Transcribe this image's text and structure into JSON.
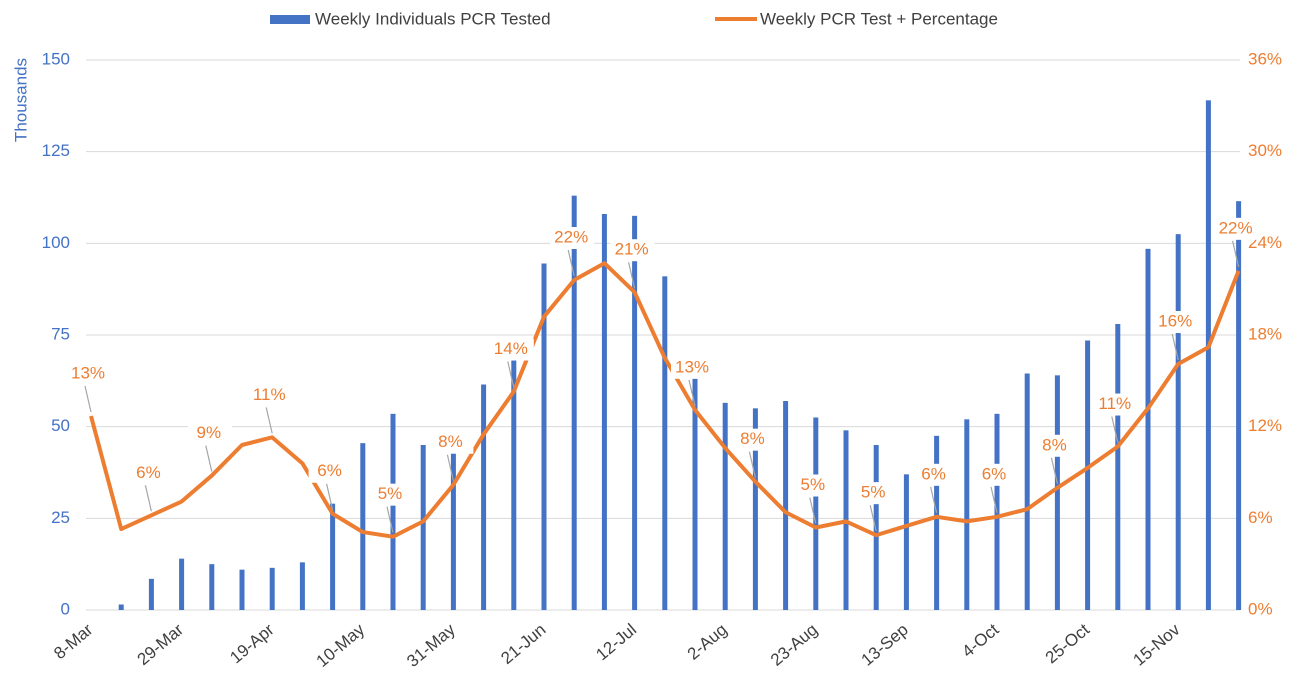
{
  "chart_data": {
    "type": "bar-line",
    "y_label": "Thousands",
    "categories": [
      "8-Mar",
      null,
      null,
      "29-Mar",
      null,
      null,
      "19-Apr",
      null,
      null,
      "10-May",
      null,
      null,
      "31-May",
      null,
      null,
      "21-Jun",
      null,
      null,
      "12-Jul",
      null,
      null,
      "2-Aug",
      null,
      null,
      "23-Aug",
      null,
      null,
      "13-Sep",
      null,
      null,
      "4-Oct",
      null,
      null,
      "25-Oct",
      null,
      null,
      "15-Nov",
      null,
      null
    ],
    "series": [
      {
        "name": "Weekly Individuals PCR Tested",
        "type": "bar",
        "color": "#4472c4",
        "axis": "y",
        "values": [
          0,
          1.5,
          8.5,
          14,
          12.5,
          11,
          11.5,
          13,
          29,
          45.5,
          53.5,
          45,
          47,
          61.5,
          74,
          94.5,
          113,
          108,
          107.5,
          91,
          68,
          56.5,
          55,
          57,
          52.5,
          49,
          45,
          37,
          47.5,
          52,
          53.5,
          64.5,
          64,
          73.5,
          78,
          98.5,
          102.5,
          139,
          111.5
        ]
      },
      {
        "name": "Weekly PCR Test + Percentage",
        "type": "line",
        "color": "#ed7d31",
        "axis": "y2",
        "values": [
          12.7,
          5.3,
          6.2,
          7.1,
          8.8,
          10.8,
          11.3,
          9.6,
          6.3,
          5.1,
          4.8,
          5.8,
          8.2,
          11.5,
          14.3,
          19.2,
          21.6,
          22.7,
          20.8,
          16.5,
          13.1,
          10.6,
          8.4,
          6.4,
          5.4,
          5.8,
          4.9,
          5.5,
          6.1,
          5.8,
          6.1,
          6.6,
          8.0,
          9.3,
          10.7,
          13.2,
          16.1,
          17.2,
          22.2
        ],
        "value_labels": [
          "13%",
          null,
          "6%",
          null,
          "9%",
          null,
          "11%",
          null,
          "6%",
          null,
          "5%",
          null,
          "8%",
          null,
          "14%",
          null,
          "22%",
          null,
          "21%",
          null,
          "13%",
          null,
          "8%",
          null,
          "5%",
          null,
          "5%",
          null,
          "6%",
          null,
          "6%",
          null,
          "8%",
          null,
          "11%",
          null,
          "16%",
          null,
          "22%"
        ]
      }
    ],
    "ylim": [
      0,
      150
    ],
    "yticks": [
      0,
      25,
      50,
      75,
      100,
      125,
      150
    ],
    "y2lim": [
      0,
      36
    ],
    "y2ticks": [
      {
        "value": 0,
        "label": "0%"
      },
      {
        "value": 6,
        "label": "6%"
      },
      {
        "value": 12,
        "label": "12%"
      },
      {
        "value": 18,
        "label": "18%"
      },
      {
        "value": 24,
        "label": "24%"
      },
      {
        "value": 30,
        "label": "30%"
      },
      {
        "value": 36,
        "label": "36%"
      }
    ],
    "grid": true,
    "legend": "top"
  }
}
